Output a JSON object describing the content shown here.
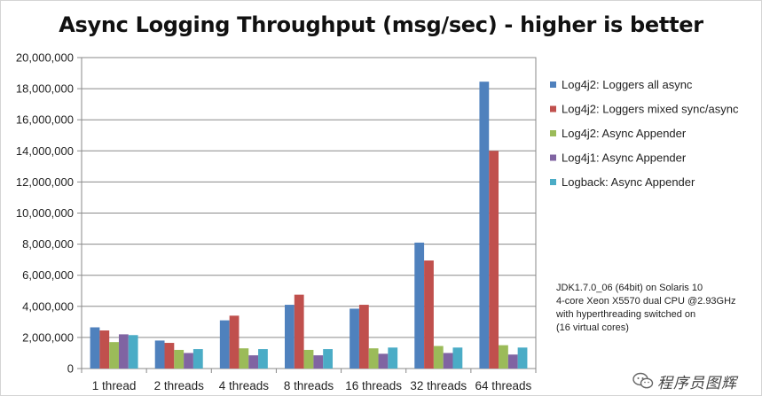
{
  "chart_data": {
    "type": "bar",
    "title": "Async Logging Throughput (msg/sec) - higher is better",
    "categories": [
      "1 thread",
      "2 threads",
      "4 threads",
      "8 threads",
      "16 threads",
      "32 threads",
      "64 threads"
    ],
    "series": [
      {
        "name": "Log4j2: Loggers all async",
        "color": "#4f81bd",
        "values": [
          2650000,
          1800000,
          3100000,
          4100000,
          3850000,
          8100000,
          18450000
        ]
      },
      {
        "name": "Log4j2: Loggers mixed sync/async",
        "color": "#c0504d",
        "values": [
          2450000,
          1650000,
          3400000,
          4750000,
          4100000,
          6950000,
          14000000
        ]
      },
      {
        "name": "Log4j2: Async Appender",
        "color": "#9bbb59",
        "values": [
          1700000,
          1200000,
          1300000,
          1200000,
          1300000,
          1450000,
          1500000
        ]
      },
      {
        "name": "Log4j1: Async Appender",
        "color": "#8064a2",
        "values": [
          2200000,
          1000000,
          850000,
          850000,
          950000,
          1000000,
          900000
        ]
      },
      {
        "name": "Logback: Async Appender",
        "color": "#4bacc6",
        "values": [
          2150000,
          1250000,
          1250000,
          1250000,
          1350000,
          1350000,
          1350000
        ]
      }
    ],
    "ylim": [
      0,
      20000000
    ],
    "ytick_labels": [
      "0",
      "2,000,000",
      "4,000,000",
      "6,000,000",
      "8,000,000",
      "10,000,000",
      "12,000,000",
      "14,000,000",
      "16,000,000",
      "18,000,000",
      "20,000,000"
    ],
    "grid": true,
    "legend_position": "right"
  },
  "note": {
    "lines": [
      "JDK1.7.0_06 (64bit) on Solaris 10",
      "4-core Xeon X5570 dual CPU @2.93GHz",
      "with hyperthreading switched on",
      "(16 virtual cores)"
    ]
  },
  "watermark": {
    "text": "程序员图辉",
    "icon": "wechat-icon"
  }
}
